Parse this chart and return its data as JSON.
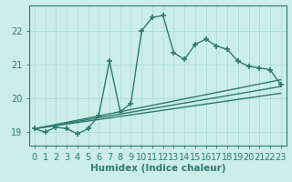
{
  "title": "",
  "xlabel": "Humidex (Indice chaleur)",
  "ylabel": "",
  "background_color": "#cceee8",
  "grid_color": "#aaddd8",
  "line_color": "#2d7a6e",
  "xlim": [
    -0.5,
    23.5
  ],
  "ylim": [
    18.6,
    22.75
  ],
  "xticks": [
    0,
    1,
    2,
    3,
    4,
    5,
    6,
    7,
    8,
    9,
    10,
    11,
    12,
    13,
    14,
    15,
    16,
    17,
    18,
    19,
    20,
    21,
    22,
    23
  ],
  "yticks": [
    19,
    20,
    21,
    22
  ],
  "main_line": {
    "x": [
      0,
      1,
      2,
      3,
      4,
      5,
      6,
      7,
      8,
      9,
      10,
      11,
      12,
      13,
      14,
      15,
      16,
      17,
      18,
      19,
      20,
      21,
      22,
      23
    ],
    "y": [
      19.1,
      19.0,
      19.15,
      19.1,
      18.95,
      19.1,
      19.5,
      21.1,
      19.6,
      19.85,
      22.0,
      22.4,
      22.45,
      21.35,
      21.15,
      21.6,
      21.75,
      21.55,
      21.45,
      21.1,
      20.95,
      20.9,
      20.85,
      20.4
    ]
  },
  "straight_lines": [
    {
      "x0": 0,
      "y0": 19.1,
      "x1": 23,
      "y1": 20.35
    },
    {
      "x0": 0,
      "y0": 19.1,
      "x1": 23,
      "y1": 20.55
    },
    {
      "x0": 0,
      "y0": 19.1,
      "x1": 23,
      "y1": 20.15
    }
  ],
  "marker": "+",
  "markersize": 4,
  "markeredgewidth": 1.2,
  "linewidth": 1.0,
  "font_size": 7,
  "xlabel_fontsize": 7.5,
  "xlabel_fontweight": "bold"
}
